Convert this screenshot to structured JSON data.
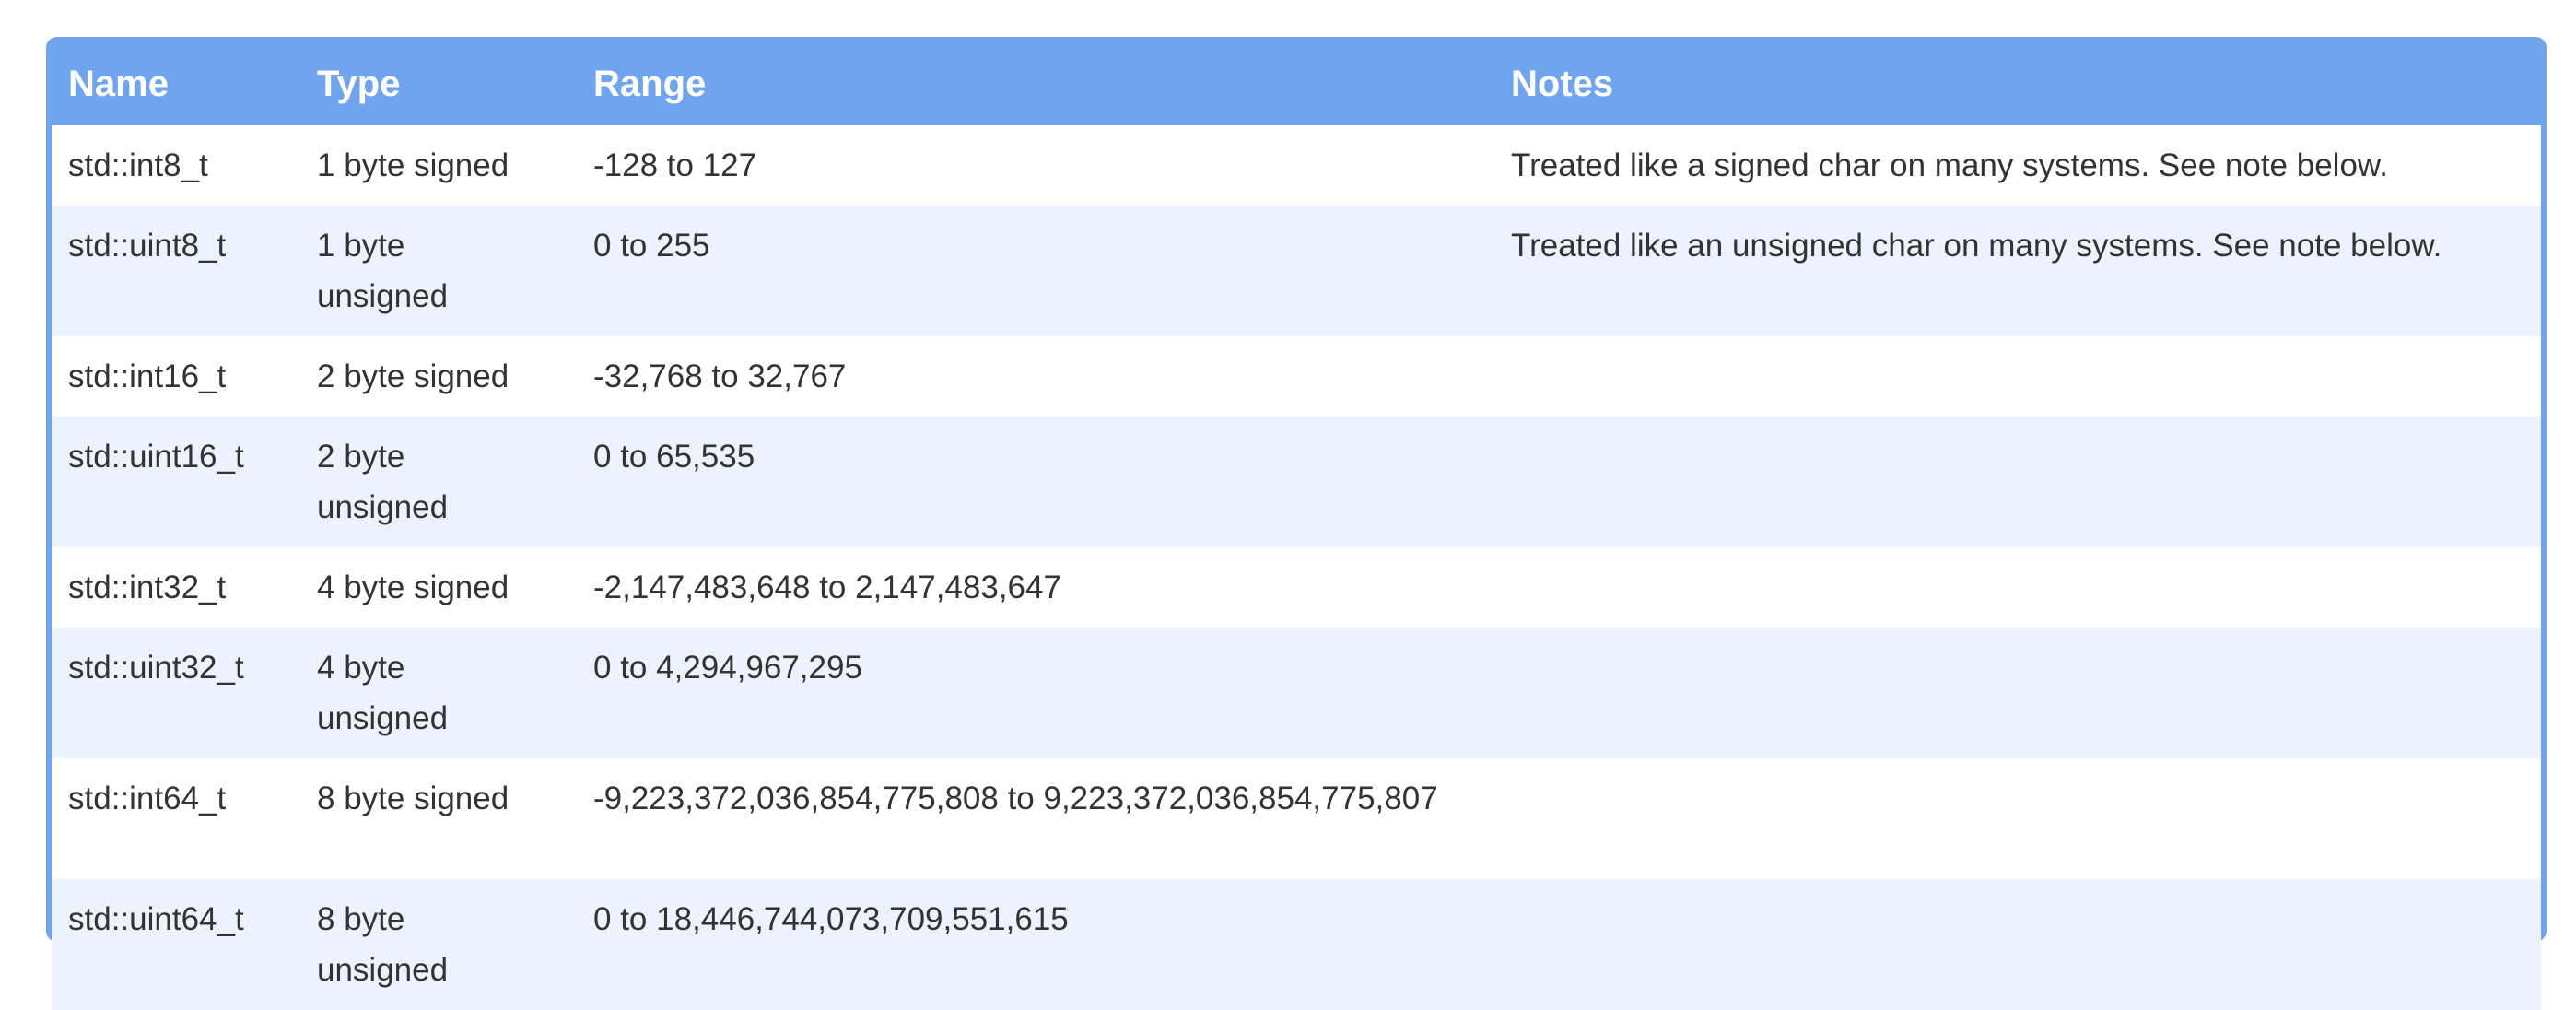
{
  "table": {
    "headers": {
      "name": "Name",
      "type": "Type",
      "range": "Range",
      "notes": "Notes"
    },
    "rows": [
      {
        "name": "std::int8_t",
        "type": "1 byte signed",
        "range": "-128 to 127",
        "notes": "Treated like a signed char on many systems. See note below."
      },
      {
        "name": "std::uint8_t",
        "type": "1 byte unsigned",
        "range": "0 to 255",
        "notes": "Treated like an unsigned char on many systems. See note below."
      },
      {
        "name": "std::int16_t",
        "type": "2 byte signed",
        "range": "-32,768 to 32,767",
        "notes": ""
      },
      {
        "name": "std::uint16_t",
        "type": "2 byte unsigned",
        "range": "0 to 65,535",
        "notes": ""
      },
      {
        "name": "std::int32_t",
        "type": "4 byte signed",
        "range": "-2,147,483,648 to 2,147,483,647",
        "notes": ""
      },
      {
        "name": "std::uint32_t",
        "type": "4 byte unsigned",
        "range": "0 to 4,294,967,295",
        "notes": ""
      },
      {
        "name": "std::int64_t",
        "type": "8 byte signed",
        "range": "-9,223,372,036,854,775,808 to 9,223,372,036,854,775,807",
        "notes": ""
      },
      {
        "name": "std::uint64_t",
        "type": "8 byte unsigned",
        "range": "0 to 18,446,744,073,709,551,615",
        "notes": ""
      }
    ]
  },
  "colors": {
    "header_bg": "#71a4ee",
    "header_text": "#ffffff",
    "row_alt_bg": "#ecf3fe",
    "text": "#333333"
  }
}
